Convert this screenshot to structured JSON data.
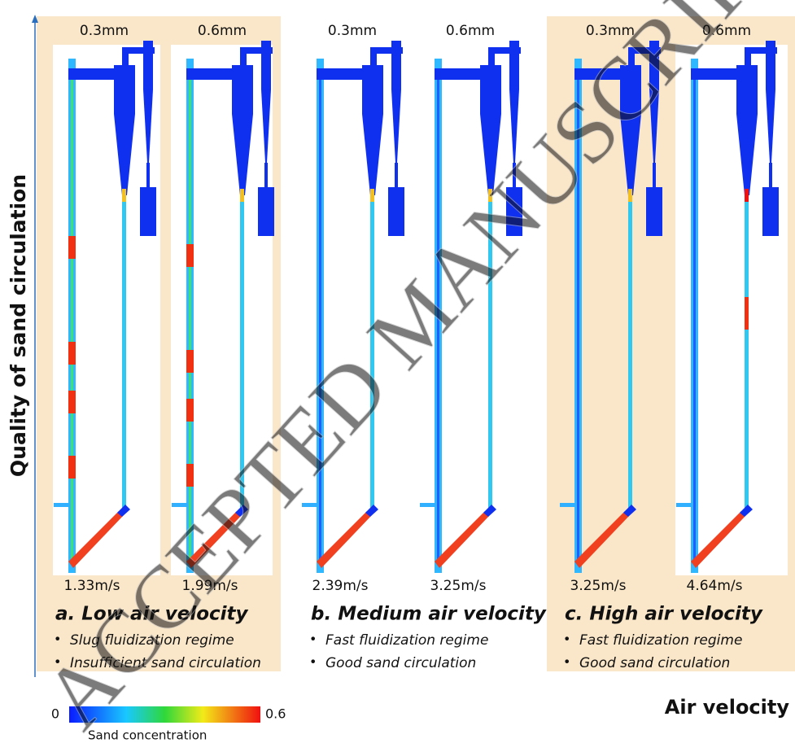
{
  "y_axis_label": "Quality of sand circulation",
  "x_axis_label": "Air velocity",
  "panels": [
    {
      "title": "a. Low air velocity",
      "bullets": [
        "Slug fluidization regime",
        "Insufficient sand circulation"
      ],
      "columns": [
        {
          "size": "0.3mm",
          "velocity": "1.33m/s"
        },
        {
          "size": "0.6mm",
          "velocity": "1.99m/s"
        }
      ]
    },
    {
      "title": "b. Medium air velocity",
      "bullets": [
        "Fast fluidization regime",
        "Good sand circulation"
      ],
      "columns": [
        {
          "size": "0.3mm",
          "velocity": "2.39m/s"
        },
        {
          "size": "0.6mm",
          "velocity": "3.25m/s"
        }
      ]
    },
    {
      "title": "c. High air velocity",
      "bullets": [
        "Fast fluidization regime",
        "Good sand circulation"
      ],
      "columns": [
        {
          "size": "0.3mm",
          "velocity": "3.25m/s"
        },
        {
          "size": "0.6mm",
          "velocity": "4.64m/s"
        }
      ]
    }
  ],
  "colorbar": {
    "min": "0",
    "max": "0.6",
    "label": "Sand concentration"
  },
  "watermark": "ACCEPTED MANUSCRIPT"
}
